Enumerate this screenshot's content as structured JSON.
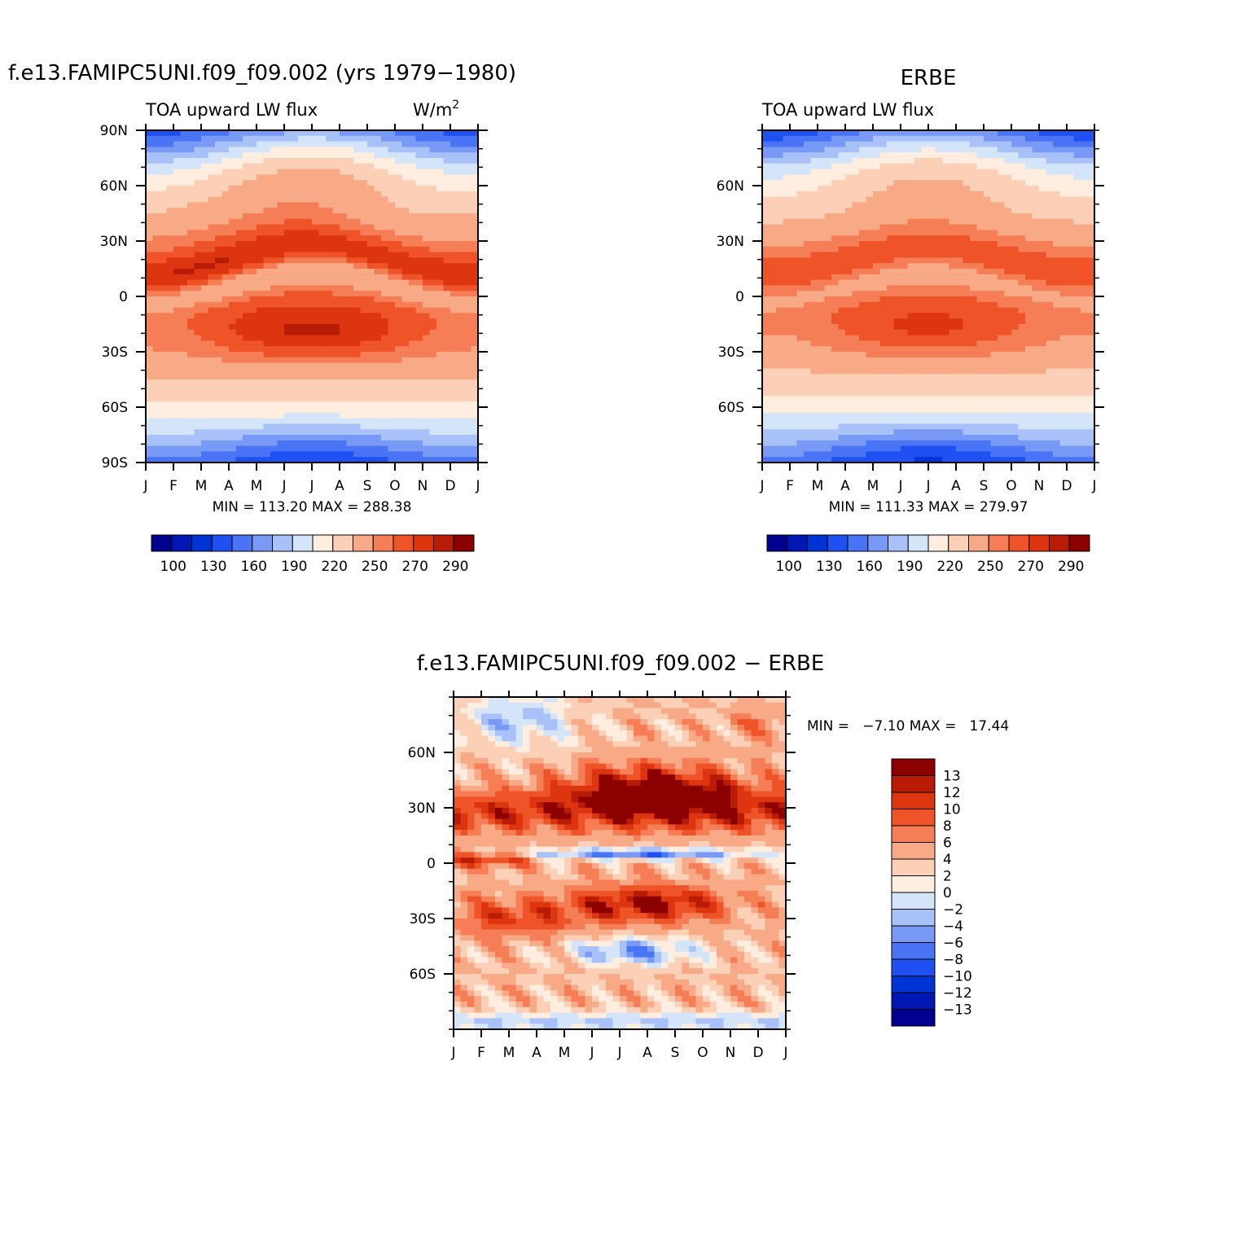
{
  "chart_data": [
    {
      "type": "heatmap",
      "title": "f.e13.FAMIPC5UNI.f09_f09.002 (yrs 1979−1980)",
      "left_string": "TOA upward LW flux",
      "right_string": "W/m",
      "right_string_sup": "2",
      "x_tick_labels": [
        "J",
        "F",
        "M",
        "A",
        "M",
        "J",
        "J",
        "A",
        "S",
        "O",
        "N",
        "D",
        "J"
      ],
      "y_tick_labels": [
        "90N",
        "60N",
        "30N",
        "0",
        "30S",
        "60S",
        "90S"
      ],
      "ylim": [
        -90,
        90
      ],
      "stats": "MIN = 113.20  MAX = 288.38",
      "min": 113.2,
      "max": 288.38,
      "colorbar_labels": [
        "100",
        "130",
        "160",
        "190",
        "220",
        "250",
        "270",
        "290"
      ],
      "colorbar_orientation": "horizontal",
      "field": "model"
    },
    {
      "type": "heatmap",
      "title": "ERBE",
      "left_string": "TOA upward LW flux",
      "x_tick_labels": [
        "J",
        "F",
        "M",
        "A",
        "M",
        "J",
        "J",
        "A",
        "S",
        "O",
        "N",
        "D",
        "J"
      ],
      "y_tick_labels": [
        "60N",
        "30N",
        "0",
        "30S",
        "60S"
      ],
      "ylim": [
        -90,
        90
      ],
      "stats": "MIN = 111.33  MAX = 279.97",
      "min": 111.33,
      "max": 279.97,
      "colorbar_labels": [
        "100",
        "130",
        "160",
        "190",
        "220",
        "250",
        "270",
        "290"
      ],
      "colorbar_orientation": "horizontal",
      "field": "obs"
    },
    {
      "type": "heatmap",
      "title": "f.e13.FAMIPC5UNI.f09_f09.002 − ERBE",
      "x_tick_labels": [
        "J",
        "F",
        "M",
        "A",
        "M",
        "J",
        "J",
        "A",
        "S",
        "O",
        "N",
        "D",
        "J"
      ],
      "y_tick_labels": [
        "60N",
        "30N",
        "0",
        "30S",
        "60S"
      ],
      "ylim": [
        -90,
        90
      ],
      "stats": "MIN =   −7.10 MAX =   17.44",
      "min": -7.1,
      "max": 17.44,
      "colorbar_labels": [
        "13",
        "12",
        "10",
        "8",
        "6",
        "4",
        "2",
        "0",
        "−2",
        "−4",
        "−6",
        "−8",
        "−10",
        "−12",
        "−13"
      ],
      "colorbar_orientation": "vertical",
      "field": "diff"
    }
  ],
  "colors": {
    "abs_scale": [
      "#00008f",
      "#0017b4",
      "#0033d6",
      "#1f50f2",
      "#4874f5",
      "#7899f5",
      "#a8c1f8",
      "#d4e5fa",
      "#ffeddf",
      "#fbd0b6",
      "#f8a986",
      "#f57e57",
      "#ef5428",
      "#dc3510",
      "#b81c06",
      "#8c0000"
    ],
    "diff_scale": [
      "#00008f",
      "#0017b4",
      "#0033d6",
      "#1f50f2",
      "#4874f5",
      "#7899f5",
      "#a8c1f8",
      "#d4e5fa",
      "#ffeddf",
      "#fbd0b6",
      "#f8a986",
      "#f57e57",
      "#ef5428",
      "#dc3510",
      "#b81c06",
      "#8c0000"
    ]
  }
}
